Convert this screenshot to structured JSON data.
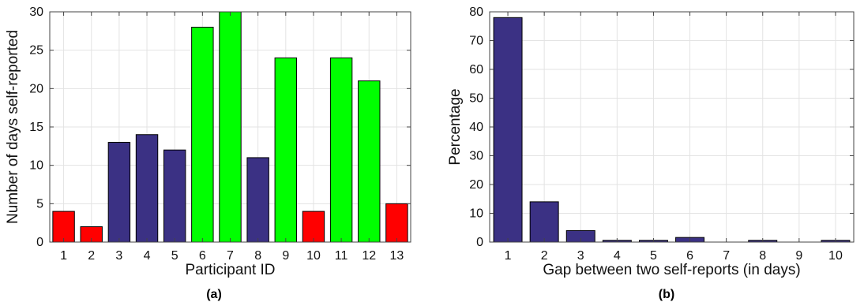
{
  "chart_data": [
    {
      "type": "bar",
      "caption": "(a)",
      "xlabel": "Participant ID",
      "ylabel": "Number of days self-reported",
      "categories": [
        "1",
        "2",
        "3",
        "4",
        "5",
        "6",
        "7",
        "8",
        "9",
        "10",
        "11",
        "12",
        "13"
      ],
      "values": [
        4,
        2,
        13,
        14,
        12,
        28,
        30,
        11,
        24,
        4,
        24,
        21,
        5
      ],
      "bar_colors": [
        "#ff0000",
        "#ff0000",
        "#3b3184",
        "#3b3184",
        "#3b3184",
        "#00ff00",
        "#00ff00",
        "#3b3184",
        "#00ff00",
        "#ff0000",
        "#00ff00",
        "#00ff00",
        "#ff0000"
      ],
      "ylim": [
        0,
        30
      ],
      "yticks": [
        0,
        5,
        10,
        15,
        20,
        25,
        30
      ],
      "grid": true
    },
    {
      "type": "bar",
      "caption": "(b)",
      "xlabel": "Gap between two self-reports (in days)",
      "ylabel": "Percentage",
      "categories": [
        "1",
        "2",
        "3",
        "4",
        "5",
        "6",
        "7",
        "8",
        "9",
        "10"
      ],
      "values": [
        78,
        14,
        4,
        0.6,
        0.6,
        1.6,
        0,
        0.6,
        0,
        0.6
      ],
      "bar_colors": [
        "#3b3184"
      ],
      "ylim": [
        0,
        80
      ],
      "yticks": [
        0,
        10,
        20,
        30,
        40,
        50,
        60,
        70,
        80
      ],
      "grid": true
    }
  ]
}
